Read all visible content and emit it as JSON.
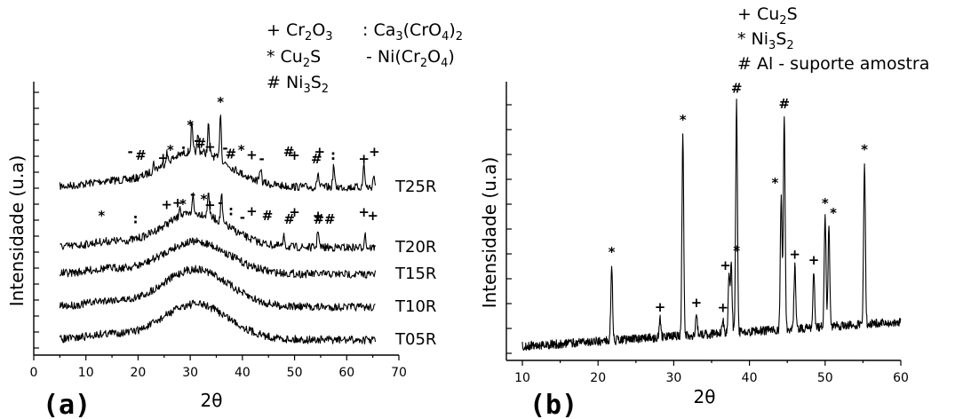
{
  "chart_data": [
    {
      "panel": "(a)",
      "type": "line",
      "xlabel": "2θ",
      "ylabel": "Intensidade (u.a)",
      "xlim": [
        0,
        70
      ],
      "xticks": [
        0,
        10,
        20,
        30,
        40,
        50,
        60,
        70
      ],
      "legend": [
        {
          "symbol": "+",
          "phase": "Cr",
          "sub1": "2",
          "mid": "O",
          "sub2": "3"
        },
        {
          "symbol": ":",
          "phase": "Ca",
          "sub1": "3",
          "mid": "(CrO",
          "sub2": "4",
          "tail": ")",
          "sub3": "2"
        },
        {
          "symbol": "*",
          "phase": "Cu",
          "sub1": "2",
          "mid": "S"
        },
        {
          "symbol": "-",
          "phase": "Ni(Cr",
          "sub1": "2",
          "mid": "O",
          "sub2": "4",
          "tail": ")"
        },
        {
          "symbol": "#",
          "phase": "Ni",
          "sub1": "3",
          "mid": "S",
          "sub2": "2"
        }
      ],
      "series": [
        {
          "name": "T25R",
          "peaks": [
            [
              23,
              0.15
            ],
            [
              25.5,
              0.2
            ],
            [
              30.3,
              0.55
            ],
            [
              31.5,
              0.35
            ],
            [
              33.5,
              0.6
            ],
            [
              35.8,
              1.0
            ],
            [
              43.5,
              0.3
            ],
            [
              54.5,
              0.3
            ],
            [
              57.5,
              0.45
            ],
            [
              63.3,
              0.5
            ],
            [
              65.2,
              0.25
            ]
          ]
        },
        {
          "name": "T20R",
          "peaks": [
            [
              28,
              0.25
            ],
            [
              30.5,
              0.4
            ],
            [
              33.5,
              0.55
            ],
            [
              36,
              0.6
            ],
            [
              48,
              0.2
            ],
            [
              54.5,
              0.4
            ],
            [
              63.5,
              0.3
            ]
          ]
        },
        {
          "name": "T15R",
          "peaks": []
        },
        {
          "name": "T10R",
          "peaks": []
        },
        {
          "name": "T05R",
          "peaks": []
        }
      ],
      "markers": [
        {
          "series": "T25R",
          "x": 18.5,
          "sym": "-"
        },
        {
          "series": "T25R",
          "x": 20.5,
          "sym": "#"
        },
        {
          "series": "T25R",
          "x": 24.8,
          "sym": "+"
        },
        {
          "series": "T25R",
          "x": 26.2,
          "sym": "*"
        },
        {
          "series": "T25R",
          "x": 28.7,
          "sym": ":"
        },
        {
          "series": "T25R",
          "x": 30.0,
          "sym": "*"
        },
        {
          "series": "T25R",
          "x": 31.2,
          "sym": "-"
        },
        {
          "series": "T25R",
          "x": 32.0,
          "sym": "#"
        },
        {
          "series": "T25R",
          "x": 33.8,
          "sym": "+"
        },
        {
          "series": "T25R",
          "x": 35.8,
          "sym": "*"
        },
        {
          "series": "T25R",
          "x": 36.7,
          "sym": "-"
        },
        {
          "series": "T25R",
          "x": 37.8,
          "sym": "#"
        },
        {
          "series": "T25R",
          "x": 39.8,
          "sym": "*"
        },
        {
          "series": "T25R",
          "x": 41.8,
          "sym": "+"
        },
        {
          "series": "T25R",
          "x": 43.7,
          "sym": "-"
        },
        {
          "series": "T25R",
          "x": 48.9,
          "sym": "#"
        },
        {
          "series": "T25R",
          "x": 50.0,
          "sym": "+"
        },
        {
          "series": "T25R",
          "x": 54.2,
          "sym": "#"
        },
        {
          "series": "T25R",
          "x": 54.8,
          "sym": "+"
        },
        {
          "series": "T25R",
          "x": 57.4,
          "sym": ":"
        },
        {
          "series": "T25R",
          "x": 63.3,
          "sym": "+"
        },
        {
          "series": "T25R",
          "x": 65.3,
          "sym": "+"
        },
        {
          "series": "T20R",
          "x": 13.0,
          "sym": "*"
        },
        {
          "series": "T20R",
          "x": 19.5,
          "sym": ":"
        },
        {
          "series": "T20R",
          "x": 25.5,
          "sym": "+"
        },
        {
          "series": "T20R",
          "x": 27.6,
          "sym": "+"
        },
        {
          "series": "T20R",
          "x": 28.6,
          "sym": "*"
        },
        {
          "series": "T20R",
          "x": 30.5,
          "sym": "-"
        },
        {
          "series": "T20R",
          "x": 32.6,
          "sym": "*"
        },
        {
          "series": "T20R",
          "x": 33.8,
          "sym": "+"
        },
        {
          "series": "T20R",
          "x": 35.8,
          "sym": "-"
        },
        {
          "series": "T20R",
          "x": 37.8,
          "sym": ":"
        },
        {
          "series": "T20R",
          "x": 40.0,
          "sym": "-"
        },
        {
          "series": "T20R",
          "x": 41.8,
          "sym": "+"
        },
        {
          "series": "T20R",
          "x": 44.8,
          "sym": "#"
        },
        {
          "series": "T20R",
          "x": 49.0,
          "sym": "#"
        },
        {
          "series": "T20R",
          "x": 50.0,
          "sym": "+"
        },
        {
          "series": "T20R",
          "x": 54.5,
          "sym": "+"
        },
        {
          "series": "T20R",
          "x": 55.7,
          "sym": "##"
        },
        {
          "series": "T20R",
          "x": 63.3,
          "sym": "+"
        },
        {
          "series": "T20R",
          "x": 65.0,
          "sym": "+"
        }
      ],
      "grid": false
    },
    {
      "panel": "(b)",
      "type": "line",
      "xlabel": "2θ",
      "ylabel": "Intensidade (u.a)",
      "xlim": [
        10,
        60
      ],
      "xticks": [
        10,
        20,
        30,
        40,
        50,
        60
      ],
      "legend": [
        {
          "symbol": "+",
          "phase": "Cu",
          "sub1": "2",
          "mid": "S"
        },
        {
          "symbol": "*",
          "phase": "Ni",
          "sub1": "3",
          "mid": "S",
          "sub2": "2"
        },
        {
          "symbol": "#",
          "phase": "Al - suporte amostra"
        }
      ],
      "peaks": [
        {
          "x": 21.8,
          "h": 0.33,
          "sym": "*"
        },
        {
          "x": 28.2,
          "h": 0.08,
          "sym": "+"
        },
        {
          "x": 31.2,
          "h": 0.88,
          "sym": "*"
        },
        {
          "x": 33.0,
          "h": 0.09,
          "sym": "+"
        },
        {
          "x": 36.5,
          "h": 0.06,
          "sym": "+"
        },
        {
          "x": 37.3,
          "h": 0.24,
          "sym": "+"
        },
        {
          "x": 37.6,
          "h": 0.28,
          "sym": "*"
        },
        {
          "x": 38.3,
          "h": 1.0,
          "sym": "#"
        },
        {
          "x": 44.2,
          "h": 0.58,
          "sym": "*"
        },
        {
          "x": 44.6,
          "h": 0.92,
          "sym": "#"
        },
        {
          "x": 46.0,
          "h": 0.27,
          "sym": "+"
        },
        {
          "x": 48.5,
          "h": 0.24,
          "sym": "+"
        },
        {
          "x": 50.0,
          "h": 0.48,
          "sym": "*"
        },
        {
          "x": 50.5,
          "h": 0.43,
          "sym": "*"
        },
        {
          "x": 55.2,
          "h": 0.7,
          "sym": "*"
        }
      ],
      "grid": false
    }
  ],
  "panel_labels": {
    "a": "(a)",
    "b": "(b)"
  }
}
